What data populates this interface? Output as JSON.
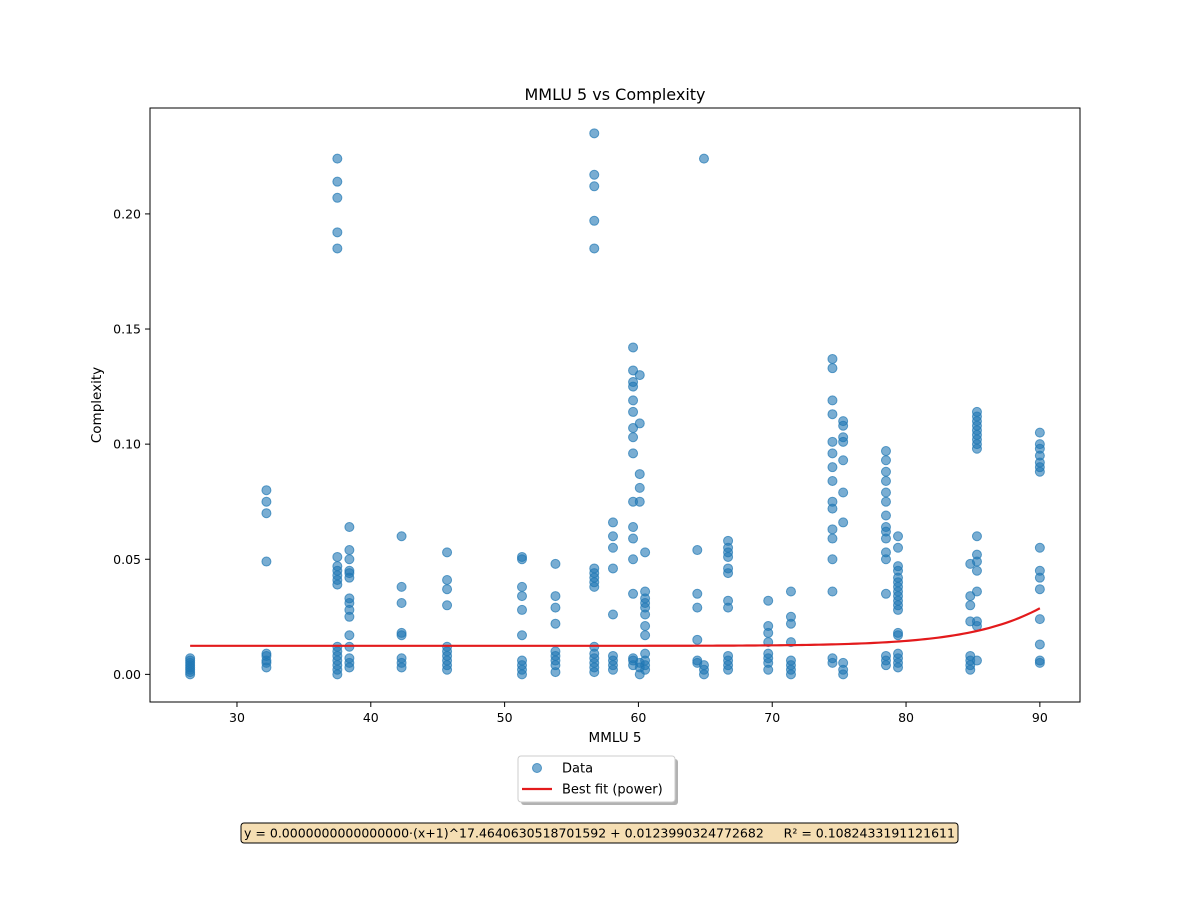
{
  "chart_data": {
    "type": "scatter",
    "title": "MMLU 5 vs Complexity",
    "xlabel": "MMLU 5",
    "ylabel": "Complexity",
    "xlim": [
      23.5,
      93.0
    ],
    "ylim": [
      -0.012,
      0.246
    ],
    "xticks": [
      "30",
      "40",
      "50",
      "60",
      "70",
      "80",
      "90"
    ],
    "yticks": [
      "0.00",
      "0.05",
      "0.10",
      "0.15",
      "0.20"
    ],
    "grid": false,
    "legend_position": "below",
    "colors": {
      "points": "#1f77b4",
      "fit": "#e31a1c",
      "eq_box_bg": "#f5deb3"
    },
    "series": [
      {
        "name": "Data",
        "kind": "scatter",
        "points": [
          [
            26.5,
            0.0
          ],
          [
            26.5,
            0.001
          ],
          [
            26.5,
            0.002
          ],
          [
            26.5,
            0.003
          ],
          [
            26.5,
            0.004
          ],
          [
            26.5,
            0.005
          ],
          [
            26.5,
            0.006
          ],
          [
            26.5,
            0.007
          ],
          [
            32.2,
            0.003
          ],
          [
            32.2,
            0.005
          ],
          [
            32.2,
            0.006
          ],
          [
            32.2,
            0.008
          ],
          [
            32.2,
            0.009
          ],
          [
            32.2,
            0.049
          ],
          [
            32.2,
            0.07
          ],
          [
            32.2,
            0.075
          ],
          [
            32.2,
            0.08
          ],
          [
            37.5,
            0.0
          ],
          [
            37.5,
            0.002
          ],
          [
            37.5,
            0.004
          ],
          [
            37.5,
            0.006
          ],
          [
            37.5,
            0.008
          ],
          [
            37.5,
            0.01
          ],
          [
            37.5,
            0.012
          ],
          [
            37.5,
            0.039
          ],
          [
            37.5,
            0.041
          ],
          [
            37.5,
            0.043
          ],
          [
            37.5,
            0.045
          ],
          [
            37.5,
            0.047
          ],
          [
            37.5,
            0.051
          ],
          [
            37.5,
            0.185
          ],
          [
            37.5,
            0.192
          ],
          [
            37.5,
            0.207
          ],
          [
            37.5,
            0.214
          ],
          [
            37.5,
            0.224
          ],
          [
            38.4,
            0.003
          ],
          [
            38.4,
            0.005
          ],
          [
            38.4,
            0.007
          ],
          [
            38.4,
            0.012
          ],
          [
            38.4,
            0.017
          ],
          [
            38.4,
            0.025
          ],
          [
            38.4,
            0.028
          ],
          [
            38.4,
            0.031
          ],
          [
            38.4,
            0.033
          ],
          [
            38.4,
            0.042
          ],
          [
            38.4,
            0.044
          ],
          [
            38.4,
            0.045
          ],
          [
            38.4,
            0.05
          ],
          [
            38.4,
            0.054
          ],
          [
            38.4,
            0.064
          ],
          [
            42.3,
            0.003
          ],
          [
            42.3,
            0.005
          ],
          [
            42.3,
            0.007
          ],
          [
            42.3,
            0.017
          ],
          [
            42.3,
            0.018
          ],
          [
            42.3,
            0.031
          ],
          [
            42.3,
            0.038
          ],
          [
            42.3,
            0.06
          ],
          [
            45.7,
            0.002
          ],
          [
            45.7,
            0.004
          ],
          [
            45.7,
            0.006
          ],
          [
            45.7,
            0.008
          ],
          [
            45.7,
            0.01
          ],
          [
            45.7,
            0.012
          ],
          [
            45.7,
            0.03
          ],
          [
            45.7,
            0.037
          ],
          [
            45.7,
            0.041
          ],
          [
            45.7,
            0.053
          ],
          [
            51.3,
            0.0
          ],
          [
            51.3,
            0.002
          ],
          [
            51.3,
            0.004
          ],
          [
            51.3,
            0.006
          ],
          [
            51.3,
            0.017
          ],
          [
            51.3,
            0.028
          ],
          [
            51.3,
            0.034
          ],
          [
            51.3,
            0.038
          ],
          [
            51.3,
            0.05
          ],
          [
            51.3,
            0.051
          ],
          [
            53.8,
            0.001
          ],
          [
            53.8,
            0.004
          ],
          [
            53.8,
            0.006
          ],
          [
            53.8,
            0.008
          ],
          [
            53.8,
            0.01
          ],
          [
            53.8,
            0.022
          ],
          [
            53.8,
            0.029
          ],
          [
            53.8,
            0.034
          ],
          [
            53.8,
            0.048
          ],
          [
            56.7,
            0.001
          ],
          [
            56.7,
            0.003
          ],
          [
            56.7,
            0.005
          ],
          [
            56.7,
            0.007
          ],
          [
            56.7,
            0.009
          ],
          [
            56.7,
            0.012
          ],
          [
            56.7,
            0.038
          ],
          [
            56.7,
            0.04
          ],
          [
            56.7,
            0.042
          ],
          [
            56.7,
            0.044
          ],
          [
            56.7,
            0.046
          ],
          [
            56.7,
            0.185
          ],
          [
            56.7,
            0.197
          ],
          [
            56.7,
            0.212
          ],
          [
            56.7,
            0.217
          ],
          [
            56.7,
            0.235
          ],
          [
            58.1,
            0.002
          ],
          [
            58.1,
            0.004
          ],
          [
            58.1,
            0.006
          ],
          [
            58.1,
            0.008
          ],
          [
            58.1,
            0.026
          ],
          [
            58.1,
            0.046
          ],
          [
            58.1,
            0.055
          ],
          [
            58.1,
            0.06
          ],
          [
            58.1,
            0.066
          ],
          [
            59.6,
            0.004
          ],
          [
            59.6,
            0.006
          ],
          [
            59.6,
            0.007
          ],
          [
            59.6,
            0.035
          ],
          [
            59.6,
            0.05
          ],
          [
            59.6,
            0.059
          ],
          [
            59.6,
            0.064
          ],
          [
            59.6,
            0.075
          ],
          [
            59.6,
            0.096
          ],
          [
            59.6,
            0.103
          ],
          [
            59.6,
            0.107
          ],
          [
            59.6,
            0.114
          ],
          [
            59.6,
            0.119
          ],
          [
            59.6,
            0.125
          ],
          [
            59.6,
            0.127
          ],
          [
            59.6,
            0.132
          ],
          [
            59.6,
            0.142
          ],
          [
            60.1,
            0.0
          ],
          [
            60.1,
            0.003
          ],
          [
            60.1,
            0.005
          ],
          [
            60.1,
            0.075
          ],
          [
            60.1,
            0.081
          ],
          [
            60.1,
            0.087
          ],
          [
            60.1,
            0.109
          ],
          [
            60.1,
            0.13
          ],
          [
            60.5,
            0.002
          ],
          [
            60.5,
            0.004
          ],
          [
            60.5,
            0.006
          ],
          [
            60.5,
            0.009
          ],
          [
            60.5,
            0.017
          ],
          [
            60.5,
            0.021
          ],
          [
            60.5,
            0.026
          ],
          [
            60.5,
            0.029
          ],
          [
            60.5,
            0.031
          ],
          [
            60.5,
            0.033
          ],
          [
            60.5,
            0.036
          ],
          [
            60.5,
            0.053
          ],
          [
            64.4,
            0.005
          ],
          [
            64.4,
            0.006
          ],
          [
            64.4,
            0.015
          ],
          [
            64.4,
            0.029
          ],
          [
            64.4,
            0.035
          ],
          [
            64.4,
            0.054
          ],
          [
            64.9,
            0.0
          ],
          [
            64.9,
            0.002
          ],
          [
            64.9,
            0.004
          ],
          [
            64.9,
            0.224
          ],
          [
            66.7,
            0.002
          ],
          [
            66.7,
            0.004
          ],
          [
            66.7,
            0.006
          ],
          [
            66.7,
            0.008
          ],
          [
            66.7,
            0.029
          ],
          [
            66.7,
            0.032
          ],
          [
            66.7,
            0.044
          ],
          [
            66.7,
            0.046
          ],
          [
            66.7,
            0.051
          ],
          [
            66.7,
            0.053
          ],
          [
            66.7,
            0.055
          ],
          [
            66.7,
            0.058
          ],
          [
            69.7,
            0.002
          ],
          [
            69.7,
            0.005
          ],
          [
            69.7,
            0.007
          ],
          [
            69.7,
            0.009
          ],
          [
            69.7,
            0.014
          ],
          [
            69.7,
            0.018
          ],
          [
            69.7,
            0.021
          ],
          [
            69.7,
            0.032
          ],
          [
            71.4,
            0.0
          ],
          [
            71.4,
            0.002
          ],
          [
            71.4,
            0.004
          ],
          [
            71.4,
            0.006
          ],
          [
            71.4,
            0.014
          ],
          [
            71.4,
            0.022
          ],
          [
            71.4,
            0.025
          ],
          [
            71.4,
            0.036
          ],
          [
            74.5,
            0.005
          ],
          [
            74.5,
            0.007
          ],
          [
            74.5,
            0.036
          ],
          [
            74.5,
            0.05
          ],
          [
            74.5,
            0.059
          ],
          [
            74.5,
            0.063
          ],
          [
            74.5,
            0.072
          ],
          [
            74.5,
            0.075
          ],
          [
            74.5,
            0.084
          ],
          [
            74.5,
            0.09
          ],
          [
            74.5,
            0.096
          ],
          [
            74.5,
            0.101
          ],
          [
            74.5,
            0.113
          ],
          [
            74.5,
            0.119
          ],
          [
            74.5,
            0.133
          ],
          [
            74.5,
            0.137
          ],
          [
            75.3,
            0.0
          ],
          [
            75.3,
            0.002
          ],
          [
            75.3,
            0.005
          ],
          [
            75.3,
            0.066
          ],
          [
            75.3,
            0.079
          ],
          [
            75.3,
            0.093
          ],
          [
            75.3,
            0.101
          ],
          [
            75.3,
            0.103
          ],
          [
            75.3,
            0.108
          ],
          [
            75.3,
            0.11
          ],
          [
            78.5,
            0.004
          ],
          [
            78.5,
            0.006
          ],
          [
            78.5,
            0.008
          ],
          [
            78.5,
            0.035
          ],
          [
            78.5,
            0.05
          ],
          [
            78.5,
            0.053
          ],
          [
            78.5,
            0.059
          ],
          [
            78.5,
            0.062
          ],
          [
            78.5,
            0.064
          ],
          [
            78.5,
            0.069
          ],
          [
            78.5,
            0.075
          ],
          [
            78.5,
            0.079
          ],
          [
            78.5,
            0.084
          ],
          [
            78.5,
            0.088
          ],
          [
            78.5,
            0.093
          ],
          [
            78.5,
            0.097
          ],
          [
            79.4,
            0.003
          ],
          [
            79.4,
            0.005
          ],
          [
            79.4,
            0.007
          ],
          [
            79.4,
            0.009
          ],
          [
            79.4,
            0.017
          ],
          [
            79.4,
            0.018
          ],
          [
            79.4,
            0.028
          ],
          [
            79.4,
            0.03
          ],
          [
            79.4,
            0.032
          ],
          [
            79.4,
            0.034
          ],
          [
            79.4,
            0.036
          ],
          [
            79.4,
            0.038
          ],
          [
            79.4,
            0.04
          ],
          [
            79.4,
            0.042
          ],
          [
            79.4,
            0.045
          ],
          [
            79.4,
            0.047
          ],
          [
            79.4,
            0.055
          ],
          [
            79.4,
            0.06
          ],
          [
            84.8,
            0.002
          ],
          [
            84.8,
            0.004
          ],
          [
            84.8,
            0.006
          ],
          [
            84.8,
            0.008
          ],
          [
            84.8,
            0.023
          ],
          [
            84.8,
            0.03
          ],
          [
            84.8,
            0.034
          ],
          [
            84.8,
            0.048
          ],
          [
            85.3,
            0.006
          ],
          [
            85.3,
            0.021
          ],
          [
            85.3,
            0.023
          ],
          [
            85.3,
            0.036
          ],
          [
            85.3,
            0.045
          ],
          [
            85.3,
            0.049
          ],
          [
            85.3,
            0.052
          ],
          [
            85.3,
            0.06
          ],
          [
            85.3,
            0.098
          ],
          [
            85.3,
            0.1
          ],
          [
            85.3,
            0.102
          ],
          [
            85.3,
            0.104
          ],
          [
            85.3,
            0.106
          ],
          [
            85.3,
            0.108
          ],
          [
            85.3,
            0.11
          ],
          [
            85.3,
            0.112
          ],
          [
            85.3,
            0.114
          ],
          [
            90.0,
            0.005
          ],
          [
            90.0,
            0.006
          ],
          [
            90.0,
            0.013
          ],
          [
            90.0,
            0.024
          ],
          [
            90.0,
            0.037
          ],
          [
            90.0,
            0.042
          ],
          [
            90.0,
            0.045
          ],
          [
            90.0,
            0.055
          ],
          [
            90.0,
            0.088
          ],
          [
            90.0,
            0.09
          ],
          [
            90.0,
            0.092
          ],
          [
            90.0,
            0.095
          ],
          [
            90.0,
            0.098
          ],
          [
            90.0,
            0.1
          ],
          [
            90.0,
            0.105
          ]
        ]
      },
      {
        "name": "Best fit (power)",
        "kind": "line",
        "x_range": [
          26.5,
          90.0
        ],
        "model": "power",
        "a": 1e-36,
        "b": 17.46406305187016,
        "c": 0.0123990324772682
      }
    ],
    "legend": [
      "Data",
      "Best fit (power)"
    ],
    "annotation": "y = 0.0000000000000000·(x+1)^17.4640630518701592 + 0.0123990324772682     R² = 0.1082433191121611"
  }
}
